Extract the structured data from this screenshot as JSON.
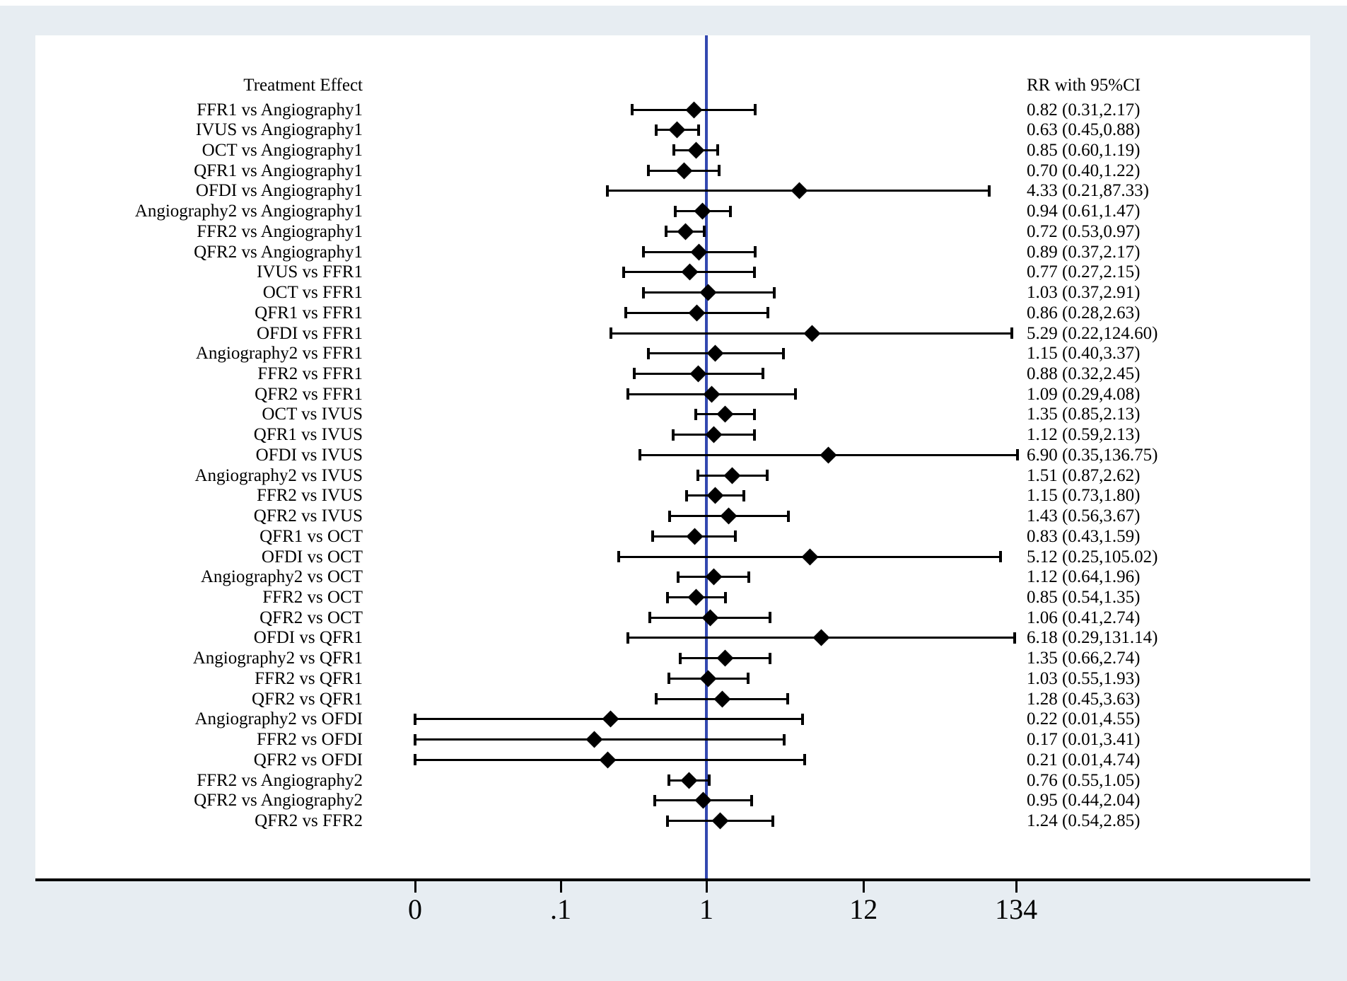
{
  "chart_data": {
    "type": "forest",
    "left_column_header": "Treatment Effect",
    "right_column_header": "RR with 95%CI",
    "scale": "log10",
    "reference_line_value": 1,
    "x_ticks": [
      {
        "label": "0",
        "value": 0.01
      },
      {
        "label": ".1",
        "value": 0.1
      },
      {
        "label": "1",
        "value": 1
      },
      {
        "label": "12",
        "value": 12
      },
      {
        "label": "134",
        "value": 134
      }
    ],
    "rows": [
      {
        "label": "FFR1 vs Angiography1",
        "rr": 0.82,
        "ci_low": 0.31,
        "ci_high": 2.17,
        "rr_text": "0.82 (0.31,2.17)"
      },
      {
        "label": "IVUS vs Angiography1",
        "rr": 0.63,
        "ci_low": 0.45,
        "ci_high": 0.88,
        "rr_text": "0.63 (0.45,0.88)"
      },
      {
        "label": "OCT vs Angiography1",
        "rr": 0.85,
        "ci_low": 0.6,
        "ci_high": 1.19,
        "rr_text": "0.85 (0.60,1.19)"
      },
      {
        "label": "QFR1 vs Angiography1",
        "rr": 0.7,
        "ci_low": 0.4,
        "ci_high": 1.22,
        "rr_text": "0.70 (0.40,1.22)"
      },
      {
        "label": "OFDI vs Angiography1",
        "rr": 4.33,
        "ci_low": 0.21,
        "ci_high": 87.33,
        "rr_text": "4.33 (0.21,87.33)"
      },
      {
        "label": "Angiography2 vs Angiography1",
        "rr": 0.94,
        "ci_low": 0.61,
        "ci_high": 1.47,
        "rr_text": "0.94 (0.61,1.47)"
      },
      {
        "label": "FFR2 vs Angiography1",
        "rr": 0.72,
        "ci_low": 0.53,
        "ci_high": 0.97,
        "rr_text": "0.72 (0.53,0.97)"
      },
      {
        "label": "QFR2 vs Angiography1",
        "rr": 0.89,
        "ci_low": 0.37,
        "ci_high": 2.17,
        "rr_text": "0.89 (0.37,2.17)"
      },
      {
        "label": "IVUS vs FFR1",
        "rr": 0.77,
        "ci_low": 0.27,
        "ci_high": 2.15,
        "rr_text": "0.77 (0.27,2.15)"
      },
      {
        "label": "OCT vs FFR1",
        "rr": 1.03,
        "ci_low": 0.37,
        "ci_high": 2.91,
        "rr_text": "1.03 (0.37,2.91)"
      },
      {
        "label": "QFR1 vs FFR1",
        "rr": 0.86,
        "ci_low": 0.28,
        "ci_high": 2.63,
        "rr_text": "0.86 (0.28,2.63)"
      },
      {
        "label": "OFDI vs FFR1",
        "rr": 5.29,
        "ci_low": 0.22,
        "ci_high": 124.6,
        "rr_text": "5.29 (0.22,124.60)"
      },
      {
        "label": "Angiography2 vs FFR1",
        "rr": 1.15,
        "ci_low": 0.4,
        "ci_high": 3.37,
        "rr_text": "1.15 (0.40,3.37)"
      },
      {
        "label": "FFR2 vs FFR1",
        "rr": 0.88,
        "ci_low": 0.32,
        "ci_high": 2.45,
        "rr_text": "0.88 (0.32,2.45)"
      },
      {
        "label": "QFR2 vs FFR1",
        "rr": 1.09,
        "ci_low": 0.29,
        "ci_high": 4.08,
        "rr_text": "1.09 (0.29,4.08)"
      },
      {
        "label": "OCT vs IVUS",
        "rr": 1.35,
        "ci_low": 0.85,
        "ci_high": 2.13,
        "rr_text": "1.35 (0.85,2.13)"
      },
      {
        "label": "QFR1 vs IVUS",
        "rr": 1.12,
        "ci_low": 0.59,
        "ci_high": 2.13,
        "rr_text": "1.12 (0.59,2.13)"
      },
      {
        "label": "OFDI vs IVUS",
        "rr": 6.9,
        "ci_low": 0.35,
        "ci_high": 136.75,
        "rr_text": "6.90 (0.35,136.75)"
      },
      {
        "label": "Angiography2 vs IVUS",
        "rr": 1.51,
        "ci_low": 0.87,
        "ci_high": 2.62,
        "rr_text": "1.51 (0.87,2.62)"
      },
      {
        "label": "FFR2 vs IVUS",
        "rr": 1.15,
        "ci_low": 0.73,
        "ci_high": 1.8,
        "rr_text": "1.15 (0.73,1.80)"
      },
      {
        "label": "QFR2 vs IVUS",
        "rr": 1.43,
        "ci_low": 0.56,
        "ci_high": 3.67,
        "rr_text": "1.43 (0.56,3.67)"
      },
      {
        "label": "QFR1 vs OCT",
        "rr": 0.83,
        "ci_low": 0.43,
        "ci_high": 1.59,
        "rr_text": "0.83 (0.43,1.59)"
      },
      {
        "label": "OFDI vs OCT",
        "rr": 5.12,
        "ci_low": 0.25,
        "ci_high": 105.02,
        "rr_text": "5.12 (0.25,105.02)"
      },
      {
        "label": "Angiography2 vs OCT",
        "rr": 1.12,
        "ci_low": 0.64,
        "ci_high": 1.96,
        "rr_text": "1.12 (0.64,1.96)"
      },
      {
        "label": "FFR2 vs OCT",
        "rr": 0.85,
        "ci_low": 0.54,
        "ci_high": 1.35,
        "rr_text": "0.85 (0.54,1.35)"
      },
      {
        "label": "QFR2 vs OCT",
        "rr": 1.06,
        "ci_low": 0.41,
        "ci_high": 2.74,
        "rr_text": "1.06 (0.41,2.74)"
      },
      {
        "label": "OFDI vs QFR1",
        "rr": 6.18,
        "ci_low": 0.29,
        "ci_high": 131.14,
        "rr_text": "6.18 (0.29,131.14)"
      },
      {
        "label": "Angiography2 vs QFR1",
        "rr": 1.35,
        "ci_low": 0.66,
        "ci_high": 2.74,
        "rr_text": "1.35 (0.66,2.74)"
      },
      {
        "label": "FFR2 vs QFR1",
        "rr": 1.03,
        "ci_low": 0.55,
        "ci_high": 1.93,
        "rr_text": "1.03 (0.55,1.93)"
      },
      {
        "label": "QFR2 vs QFR1",
        "rr": 1.28,
        "ci_low": 0.45,
        "ci_high": 3.63,
        "rr_text": "1.28 (0.45,3.63)"
      },
      {
        "label": "Angiography2 vs OFDI",
        "rr": 0.22,
        "ci_low": 0.01,
        "ci_high": 4.55,
        "rr_text": "0.22 (0.01,4.55)"
      },
      {
        "label": "FFR2 vs OFDI",
        "rr": 0.17,
        "ci_low": 0.01,
        "ci_high": 3.41,
        "rr_text": "0.17 (0.01,3.41)"
      },
      {
        "label": "QFR2 vs OFDI",
        "rr": 0.21,
        "ci_low": 0.01,
        "ci_high": 4.74,
        "rr_text": "0.21 (0.01,4.74)"
      },
      {
        "label": "FFR2 vs Angiography2",
        "rr": 0.76,
        "ci_low": 0.55,
        "ci_high": 1.05,
        "rr_text": "0.76 (0.55,1.05)"
      },
      {
        "label": "QFR2 vs Angiography2",
        "rr": 0.95,
        "ci_low": 0.44,
        "ci_high": 2.04,
        "rr_text": "0.95 (0.44,2.04)"
      },
      {
        "label": "QFR2 vs FFR2",
        "rr": 1.24,
        "ci_low": 0.54,
        "ci_high": 2.85,
        "rr_text": "1.24 (0.54,2.85)"
      }
    ]
  },
  "colors": {
    "page_background": "#e7edf2",
    "plot_background": "#ffffff",
    "ink": "#000000",
    "reference_line_blue": "#3348b0"
  }
}
